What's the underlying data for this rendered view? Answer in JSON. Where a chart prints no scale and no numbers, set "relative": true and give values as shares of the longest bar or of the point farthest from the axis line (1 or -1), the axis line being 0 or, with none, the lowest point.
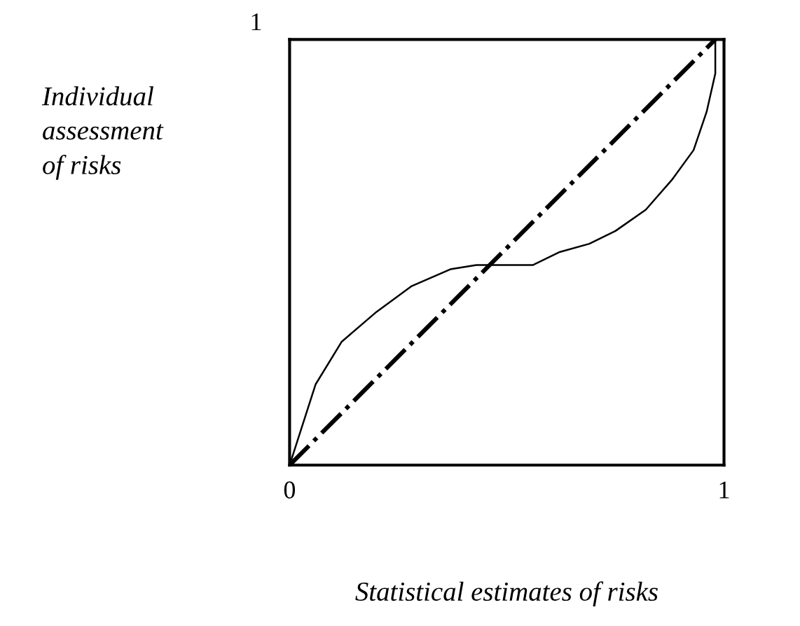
{
  "chart_data": {
    "type": "line",
    "xlabel": "Statistical estimates of risks",
    "ylabel": "Individual\nassessment\nof risks",
    "xlim": [
      0,
      1
    ],
    "xticks": [
      0,
      1
    ],
    "relative": true,
    "annotations": [
      "1"
    ],
    "legend": false,
    "series": [
      {
        "color": "#000000",
        "line_style": "solid",
        "x": [
          0,
          0.06,
          0.12,
          0.2,
          0.28,
          0.37,
          0.43,
          0.47,
          0.56,
          0.62,
          0.69,
          0.75,
          0.82,
          0.88,
          0.93,
          0.96,
          0.98,
          0.98
        ],
        "values": [
          0,
          0.19,
          0.29,
          0.36,
          0.42,
          0.46,
          0.47,
          0.47,
          0.47,
          0.5,
          0.52,
          0.55,
          0.6,
          0.67,
          0.74,
          0.83,
          0.92,
          1
        ]
      },
      {
        "color": "#000000",
        "line_style": "dashdot",
        "x": [
          0,
          0.98
        ],
        "values": [
          0,
          1
        ]
      }
    ]
  }
}
